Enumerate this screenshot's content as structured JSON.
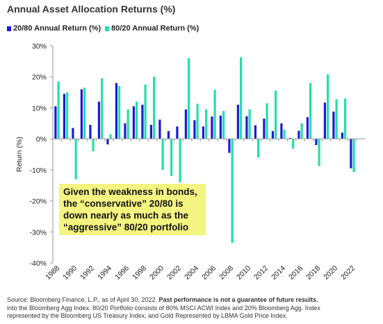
{
  "title": "Annual Asset Allocation Returns (%)",
  "callout": {
    "lines": [
      "Given the weakness in bonds,",
      "the “conservative” 20/80 is",
      "down nearly as much as the",
      "“aggressive” 80/20 portfolio"
    ],
    "color": "#f4f480"
  },
  "footer": {
    "line1_prefix": "Source: Bloomberg Finance, L.P., as of April 30, 2022. ",
    "line1_bold": "Past performance is not a guarantee of future results.",
    "line2": "into the Bloomberg Agg Index. 80/20 Portfolio consists of 80% MSCI ACWI Index and 20% Bloomberg Agg. Index",
    "line3": "represented by the Bloomberg US Treasury Index, and Gold Represented by LBMA Gold Price Index."
  },
  "chart_data": {
    "type": "bar",
    "title": "Annual Asset Allocation Returns (%)",
    "ylabel": "Return (%)",
    "ylim": [
      -40,
      30
    ],
    "yticks": [
      -40,
      -30,
      -20,
      -10,
      0,
      10,
      20,
      30
    ],
    "ytick_labels": [
      "-40%",
      "-30%",
      "-20%",
      "-10%",
      "0%",
      "10%",
      "20%",
      "30%"
    ],
    "grid": false,
    "legend_position": "top-left",
    "x": [
      1988,
      1989,
      1990,
      1991,
      1992,
      1993,
      1994,
      1995,
      1996,
      1997,
      1998,
      1999,
      2000,
      2001,
      2002,
      2003,
      2004,
      2005,
      2006,
      2007,
      2008,
      2009,
      2010,
      2011,
      2012,
      2013,
      2014,
      2015,
      2016,
      2017,
      2018,
      2019,
      2020,
      2021,
      2022
    ],
    "xtick_labels": [
      "1988",
      "1990",
      "1992",
      "1994",
      "1996",
      "1998",
      "2000",
      "2002",
      "2004",
      "2006",
      "2008",
      "2010",
      "2012",
      "2014",
      "2016",
      "2018",
      "2020",
      "2022"
    ],
    "series": [
      {
        "name": "20/80 Annual Return (%)",
        "color": "#1a1ad6",
        "values": [
          10.5,
          14.5,
          3.5,
          16,
          4.5,
          12,
          -1.8,
          18,
          5,
          10.5,
          11,
          4.5,
          6.2,
          2.5,
          4,
          9.5,
          6,
          4,
          7.2,
          7.5,
          -4.5,
          11,
          7.3,
          4.4,
          6.5,
          2.5,
          5,
          0.3,
          2.6,
          7,
          -2,
          11.7,
          8.8,
          2,
          -9.5
        ]
      },
      {
        "name": "80/20 Annual Return (%)",
        "color": "#22e0a8",
        "values": [
          18.5,
          15,
          -13,
          16.5,
          -4,
          19.5,
          1.5,
          17,
          9.5,
          12,
          17.5,
          20,
          -10,
          -12,
          -14,
          26,
          11.3,
          9.5,
          15.8,
          9,
          -33.5,
          26.3,
          9.6,
          -6,
          11.5,
          15.6,
          3,
          -3.2,
          5,
          18,
          -8.8,
          20.8,
          12.8,
          13,
          -10.7
        ]
      }
    ]
  }
}
